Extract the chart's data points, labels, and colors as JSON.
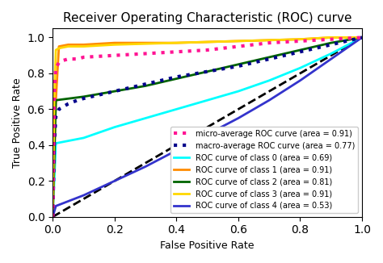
{
  "title": "Receiver Operating Characteristic (ROC) curve",
  "xlabel": "False Positive Rate",
  "ylabel": "True Positive Rate",
  "xlim": [
    0.0,
    1.0
  ],
  "ylim": [
    0.0,
    1.05
  ],
  "figsize": [
    4.74,
    3.26
  ],
  "dpi": 100,
  "micro_avg": {
    "label": "micro-average ROC curve (area = 0.91)",
    "color": "#ff1493",
    "linestyle": "dotted",
    "linewidth": 3,
    "fpr": [
      0.0,
      0.005,
      0.01,
      0.02,
      0.03,
      0.05,
      0.08,
      0.1,
      0.2,
      0.3,
      0.4,
      0.5,
      0.6,
      0.7,
      0.8,
      0.9,
      1.0
    ],
    "tpr": [
      0.0,
      0.68,
      0.83,
      0.86,
      0.87,
      0.88,
      0.88,
      0.89,
      0.9,
      0.91,
      0.92,
      0.93,
      0.95,
      0.97,
      0.98,
      0.99,
      1.0
    ]
  },
  "macro_avg": {
    "label": "macro-average ROC curve (area = 0.77)",
    "color": "#00008b",
    "linestyle": "dotted",
    "linewidth": 3,
    "fpr": [
      0.0,
      0.005,
      0.01,
      0.02,
      0.03,
      0.05,
      0.08,
      0.1,
      0.2,
      0.3,
      0.4,
      0.5,
      0.6,
      0.7,
      0.8,
      0.9,
      1.0
    ],
    "tpr": [
      0.0,
      0.41,
      0.56,
      0.6,
      0.61,
      0.63,
      0.65,
      0.66,
      0.7,
      0.74,
      0.78,
      0.81,
      0.84,
      0.88,
      0.92,
      0.96,
      1.0
    ]
  },
  "class0": {
    "label": "ROC curve of class 0 (area = 0.69)",
    "color": "cyan",
    "linestyle": "solid",
    "linewidth": 2,
    "fpr": [
      0.0,
      0.01,
      0.1,
      0.2,
      0.3,
      0.4,
      0.5,
      0.6,
      0.7,
      0.8,
      0.9,
      1.0
    ],
    "tpr": [
      0.0,
      0.41,
      0.44,
      0.5,
      0.55,
      0.6,
      0.65,
      0.7,
      0.76,
      0.83,
      0.91,
      1.0
    ]
  },
  "class1": {
    "label": "ROC curve of class 1 (area = 0.91)",
    "color": "#ff8c00",
    "linestyle": "solid",
    "linewidth": 2,
    "fpr": [
      0.0,
      0.01,
      0.02,
      0.05,
      0.1,
      0.2,
      0.4,
      0.6,
      0.8,
      0.9,
      1.0
    ],
    "tpr": [
      0.0,
      0.65,
      0.95,
      0.96,
      0.96,
      0.97,
      0.97,
      0.98,
      0.99,
      1.0,
      1.0
    ]
  },
  "class2": {
    "label": "ROC curve of class 2 (area = 0.81)",
    "color": "#006400",
    "linestyle": "solid",
    "linewidth": 2,
    "fpr": [
      0.0,
      0.01,
      0.1,
      0.2,
      0.3,
      0.4,
      0.5,
      0.6,
      0.7,
      0.8,
      0.9,
      1.0
    ],
    "tpr": [
      0.0,
      0.65,
      0.67,
      0.7,
      0.73,
      0.77,
      0.81,
      0.85,
      0.89,
      0.93,
      0.97,
      1.0
    ]
  },
  "class3": {
    "label": "ROC curve of class 3 (area = 0.91)",
    "color": "#ffd700",
    "linestyle": "solid",
    "linewidth": 2,
    "fpr": [
      0.0,
      0.005,
      0.01,
      0.02,
      0.05,
      0.1,
      0.2,
      0.4,
      0.6,
      0.8,
      0.9,
      1.0
    ],
    "tpr": [
      0.0,
      0.65,
      0.93,
      0.94,
      0.95,
      0.95,
      0.96,
      0.97,
      0.98,
      0.99,
      1.0,
      1.0
    ]
  },
  "class4": {
    "label": "ROC curve of class 4 (area = 0.53)",
    "color": "#3333cc",
    "linestyle": "solid",
    "linewidth": 2,
    "fpr": [
      0.0,
      0.01,
      0.1,
      0.2,
      0.3,
      0.4,
      0.5,
      0.6,
      0.7,
      0.8,
      0.9,
      1.0
    ],
    "tpr": [
      0.0,
      0.06,
      0.12,
      0.2,
      0.28,
      0.37,
      0.46,
      0.55,
      0.65,
      0.76,
      0.88,
      1.0
    ]
  },
  "diagonal": {
    "fpr": [
      0.0,
      1.0
    ],
    "tpr": [
      0.0,
      1.0
    ],
    "color": "black",
    "linestyle": "dashed",
    "linewidth": 2
  },
  "legend_loc": "lower right",
  "legend_fontsize": 7,
  "title_fontsize": 11,
  "label_fontsize": 9
}
